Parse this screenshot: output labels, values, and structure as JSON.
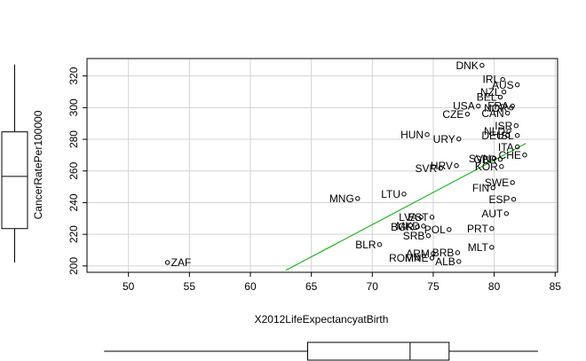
{
  "chart_data": {
    "type": "scatter",
    "x_label": "X2012LifeExpectancyatBirth",
    "y_label": "CancerRatePer100000",
    "xlim": [
      46.6,
      85.2
    ],
    "ylim": [
      196,
      331
    ],
    "xticks": [
      50,
      55,
      60,
      65,
      70,
      75,
      80,
      85
    ],
    "yticks": [
      200,
      220,
      240,
      260,
      280,
      300,
      320
    ],
    "grid": true,
    "color": "#000000",
    "fit_color": "#00b000",
    "labels": [
      "ZAF",
      "DNK",
      "IRL",
      "AUS",
      "NZL",
      "BEL",
      "USA",
      "NOR",
      "FRA",
      "CZE",
      "CAN",
      "ISR",
      "NLD",
      "DEU",
      "ISL",
      "HUN",
      "URY",
      "ITA",
      "CHE",
      "SVN",
      "GBR",
      "KOR",
      "HRV",
      "SVR",
      "SWE",
      "FIN",
      "ESP",
      "LTU",
      "MNG",
      "AUT",
      "LVA",
      "EST",
      "BGR",
      "MKD",
      "POL",
      "PRT",
      "SRB",
      "BLR",
      "MLT",
      "ARM",
      "BRB",
      "ROM",
      "MNE",
      "ALB"
    ],
    "x": [
      53.2,
      79.0,
      80.7,
      81.9,
      80.8,
      80.5,
      78.7,
      81.4,
      81.5,
      77.8,
      81.1,
      81.8,
      81.2,
      81.1,
      81.9,
      74.5,
      77.1,
      81.9,
      82.5,
      80.0,
      80.5,
      80.6,
      76.9,
      75.6,
      81.5,
      79.9,
      81.6,
      72.6,
      68.8,
      81.0,
      74.0,
      74.9,
      73.7,
      74.2,
      76.3,
      79.8,
      74.6,
      70.6,
      79.8,
      75.0,
      77.0,
      73.7,
      74.9,
      77.1
    ],
    "y": [
      202.2,
      326.7,
      317.8,
      314.4,
      309.9,
      306.6,
      301.0,
      299.8,
      301.0,
      295.9,
      296.5,
      288.6,
      285.2,
      282.4,
      282.4,
      283.0,
      280.2,
      275.2,
      270.1,
      267.9,
      267.3,
      262.8,
      263.4,
      261.7,
      252.7,
      249.4,
      242.1,
      245.4,
      242.6,
      233.1,
      230.8,
      230.8,
      224.7,
      225.2,
      223.0,
      223.6,
      219.1,
      213.5,
      211.8,
      207.9,
      208.4,
      205.0,
      205.0,
      202.8
    ],
    "fit_line": {
      "x": [
        62.9,
        82.6
      ],
      "y": [
        197.2,
        277.4
      ]
    },
    "y_boxplot": {
      "whisker_low": 202.2,
      "q1": 223.6,
      "median": 256.6,
      "q3": 284.7,
      "whisker_high": 327.3
    },
    "x_boxplot": {
      "whisker_low": 48.0,
      "q1": 64.7,
      "median": 73.1,
      "q3": 76.3,
      "whisker_high": 83.6
    }
  }
}
